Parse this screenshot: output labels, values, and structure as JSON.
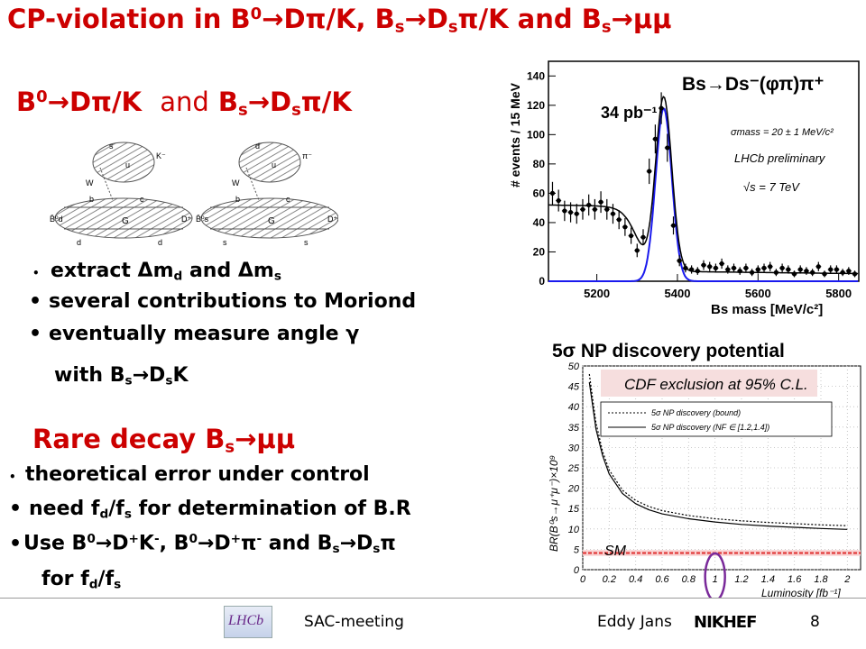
{
  "title": {
    "text_a": "CP-violation in B",
    "sup0": "0",
    "arrow": "→",
    "text_b": "Dπ/K, B",
    "sub_s": "s",
    "text_c": "D",
    "text_d": "π/K and B",
    "text_e": "μμ"
  },
  "section1": {
    "a": "B",
    "sup0": "0",
    "arrow": "→",
    "b": "Dπ/K",
    "and": "and",
    "c": "B",
    "sub_s": "s",
    "d": "D",
    "e": "π/K"
  },
  "bullets1": [
    {
      "pre": "extract ",
      "sym": "Δ",
      "m1": "m",
      "sub1": "d",
      "mid": " and ",
      "sym2": "Δ",
      "m2": "m",
      "sub2": "s"
    },
    {
      "text": "several contributions to Moriond"
    },
    {
      "text": "eventually measure angle γ"
    },
    {
      "pre": "with B",
      "sub": "s",
      "arrow": "→",
      "mid": "D",
      "sub2": "s",
      "post": "K"
    }
  ],
  "section2": {
    "a": "Rare decay B",
    "sub_s": "s",
    "arrow": "→",
    "b": "μμ"
  },
  "bullets2": [
    {
      "text": "theoretical error under control"
    },
    {
      "pre": "need f",
      "sub1": "d",
      "mid": "/f",
      "sub2": "s",
      "post": " for determination of B.R"
    },
    {
      "a": "Use B",
      "sup0": "0",
      "arrow": "→",
      "b": "D",
      "sup1": "+",
      "c": "K",
      "sup2": "-",
      "d": ", B",
      "sup3": "0",
      "e": "D",
      "sup4": "+",
      "f": "π",
      "sup5": "-",
      "g": " and B",
      "sub_s": "s",
      "h": "D",
      "sub_s2": "s",
      "i": "π"
    },
    {
      "pre": "for f",
      "sub1": "d",
      "mid": "/f",
      "sub2": "s"
    }
  ],
  "feynman": {
    "left": {
      "top_q": "s",
      "top_u": "u",
      "k_label": "K⁻",
      "w": "W",
      "b": "b",
      "c": "c",
      "g": "G",
      "in": "B̄⁰d",
      "out": "D⁺",
      "d1": "d",
      "d2": "d"
    },
    "right": {
      "top_q": "d",
      "top_u": "u",
      "k_label": "π⁻",
      "w": "W",
      "b": "b",
      "c": "c",
      "g": "G",
      "in": "B̄⁰s",
      "out": "D⁺s",
      "d1": "s",
      "d2": "s"
    }
  },
  "mass_plot": {
    "channel": "Bs→Ds⁻(φπ)π⁺",
    "lumi": "34 pb⁻¹",
    "sigma": "σmass = 20 ± 1 MeV/c²",
    "preliminary": "LHCb preliminary",
    "energy": "√s = 7 TeV",
    "ylabel": "# events / 15 MeV",
    "xlabel": "Bs mass [MeV/c²]",
    "yticks": [
      "0",
      "20",
      "40",
      "60",
      "80",
      "100",
      "120",
      "140"
    ],
    "xticks": [
      "5200",
      "5400",
      "5600",
      "5800"
    ]
  },
  "np_plot": {
    "heading": "5σ NP discovery potential",
    "exclusion": "CDF exclusion at 95% C.L.",
    "legend1": "5σ NP discovery (bound)",
    "legend2": "5σ NP discovery (NF ∈ [1.2,1.4])",
    "sm": "SM",
    "ylabel": "BR(B⁰s→μ⁺μ⁻)×10⁹",
    "xlabel": "Luminosity [fb⁻¹]",
    "yticks": [
      "0",
      "5",
      "10",
      "15",
      "20",
      "25",
      "30",
      "35",
      "40",
      "45",
      "50"
    ],
    "xticks": [
      "0",
      "0.2",
      "0.4",
      "0.6",
      "0.8",
      "1",
      "1.2",
      "1.4",
      "1.6",
      "1.8",
      "2"
    ]
  },
  "footer": {
    "lhcb_logo": "LHCb",
    "meeting": "SAC-meeting",
    "author": "Eddy Jans",
    "nikhef_logo": "NIKHEF",
    "page": "8"
  },
  "chart_data": [
    {
      "type": "scatter",
      "title": "Bs→Ds⁻(φπ)π⁺",
      "xlabel": "Bs mass [MeV/c²]",
      "ylabel": "# events / 15 MeV",
      "xlim": [
        5080,
        5850
      ],
      "ylim": [
        0,
        150
      ],
      "series": [
        {
          "x": [
            5090,
            5105,
            5120,
            5135,
            5150,
            5165,
            5180,
            5195,
            5210,
            5225,
            5240,
            5255,
            5270,
            5285,
            5300,
            5315,
            5330,
            5345,
            5360,
            5375,
            5390,
            5405,
            5420,
            5435,
            5450,
            5465,
            5480,
            5495,
            5510,
            5525,
            5540,
            5555,
            5570,
            5585,
            5600,
            5615,
            5630,
            5645,
            5660,
            5675,
            5690,
            5705,
            5720,
            5735,
            5750,
            5765,
            5780,
            5795,
            5810,
            5825,
            5840
          ],
          "y": [
            60,
            55,
            48,
            47,
            46,
            49,
            52,
            49,
            54,
            49,
            46,
            42,
            37,
            31,
            21,
            30,
            75,
            97,
            118,
            91,
            38,
            14,
            9,
            8,
            7,
            11,
            10,
            9,
            12,
            8,
            9,
            7,
            9,
            6,
            8,
            9,
            10,
            6,
            9,
            8,
            5,
            8,
            7,
            6,
            10,
            5,
            8,
            8,
            6,
            7,
            5
          ]
        }
      ]
    },
    {
      "type": "line",
      "title": "",
      "xlabel": "Luminosity [fb⁻¹]",
      "ylabel": "BR(B⁰s→μ⁺μ⁻)×10⁹",
      "xlim": [
        0,
        2.1
      ],
      "ylim": [
        0,
        50
      ],
      "series": [
        {
          "x": [
            0.05,
            0.1,
            0.15,
            0.2,
            0.3,
            0.4,
            0.5,
            0.6,
            0.8,
            1.0,
            1.2,
            1.4,
            1.6,
            1.8,
            2.0
          ],
          "y": [
            48,
            36,
            29,
            24.5,
            19.5,
            17,
            15.5,
            14.5,
            13.3,
            12.5,
            12,
            11.6,
            11.3,
            11,
            10.8
          ]
        },
        {
          "x": [
            0.05,
            0.1,
            0.15,
            0.2,
            0.3,
            0.4,
            0.5,
            0.6,
            0.8,
            1.0,
            1.2,
            1.4,
            1.6,
            1.8,
            2.0
          ],
          "y": [
            46,
            34.5,
            28,
            23.5,
            18.7,
            16.2,
            14.7,
            13.7,
            12.5,
            11.7,
            11.1,
            10.7,
            10.4,
            10.1,
            9.9
          ]
        },
        {
          "x": [
            0,
            2.1
          ],
          "y": [
            4.1,
            4.1
          ]
        }
      ]
    }
  ]
}
